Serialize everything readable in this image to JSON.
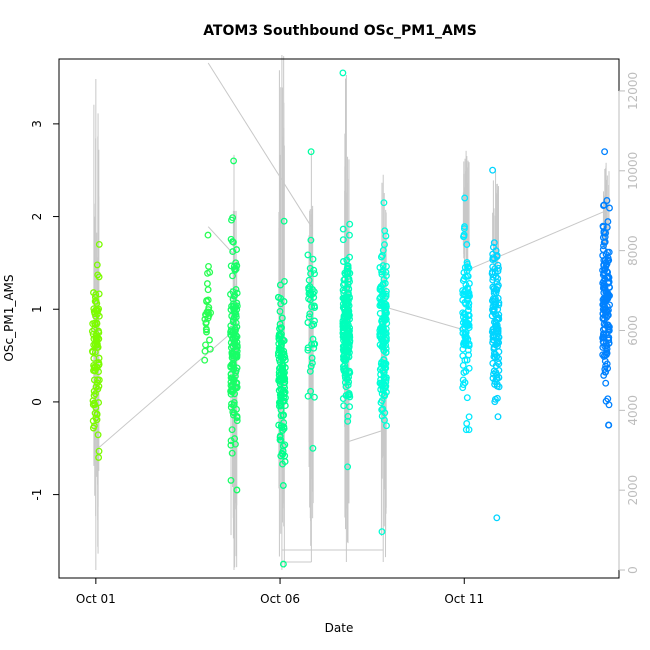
{
  "chart_data": {
    "type": "scatter",
    "title": "ATOM3 Southbound OSc_PM1_AMS",
    "xlabel": "Date",
    "ylabel": "OSc_PM1_AMS",
    "x_tick_labels": [
      {
        "label": "Oct 01",
        "day": 1
      },
      {
        "label": "Oct 06",
        "day": 6
      },
      {
        "label": "Oct 11",
        "day": 11
      }
    ],
    "xlim_days": [
      0.0,
      15.2
    ],
    "ylim": [
      -1.9,
      3.7
    ],
    "y_ticks": [
      -1,
      0,
      1,
      2,
      3
    ],
    "secondary_axis": {
      "side": "right",
      "ticks": [
        0,
        2000,
        4000,
        6000,
        8000,
        10000,
        12000
      ],
      "range": [
        -200,
        12800
      ]
    },
    "grid": false,
    "color_gradient": [
      "#7cfc00",
      "#00ff7f",
      "#00ffff",
      "#0080ff"
    ],
    "series": [
      {
        "day": 1.0,
        "ymin": -0.6,
        "ymax": 1.7,
        "n": 90,
        "center": 0.5,
        "spread": 0.45
      },
      {
        "day": 4.05,
        "ymin": 0.45,
        "ymax": 1.8,
        "n": 30,
        "center": 0.95,
        "spread": 0.3
      },
      {
        "day": 4.75,
        "ymin": -0.95,
        "ymax": 2.6,
        "n": 150,
        "center": 0.6,
        "spread": 0.5
      },
      {
        "day": 6.05,
        "ymin": -1.75,
        "ymax": 1.95,
        "n": 130,
        "center": 0.25,
        "spread": 0.45
      },
      {
        "day": 6.85,
        "ymin": -0.5,
        "ymax": 2.7,
        "n": 45,
        "center": 0.8,
        "spread": 0.5
      },
      {
        "day": 7.8,
        "ymin": -0.7,
        "ymax": 3.55,
        "n": 200,
        "center": 0.8,
        "spread": 0.4
      },
      {
        "day": 8.8,
        "ymin": -1.4,
        "ymax": 2.15,
        "n": 150,
        "center": 0.7,
        "spread": 0.45
      },
      {
        "day": 11.05,
        "ymin": -0.3,
        "ymax": 2.2,
        "n": 110,
        "center": 0.95,
        "spread": 0.4
      },
      {
        "day": 11.85,
        "ymin": -1.25,
        "ymax": 2.5,
        "n": 130,
        "center": 0.85,
        "spread": 0.45
      },
      {
        "day": 14.85,
        "ymin": -0.25,
        "ymax": 2.7,
        "n": 160,
        "center": 1.1,
        "spread": 0.45
      }
    ],
    "secondary_series": [
      {
        "day": 1.0,
        "min": 0,
        "max": 12300
      },
      {
        "day": 4.75,
        "min": 0,
        "max": 10400
      },
      {
        "day": 6.05,
        "min": 0,
        "max": 12900
      },
      {
        "day": 6.85,
        "min": 200,
        "max": 10500
      },
      {
        "day": 7.8,
        "min": 200,
        "max": 12400
      },
      {
        "day": 8.8,
        "min": 200,
        "max": 9900
      },
      {
        "day": 11.05,
        "min": 7400,
        "max": 10500
      },
      {
        "day": 11.85,
        "min": 7400,
        "max": 10000
      },
      {
        "day": 14.85,
        "min": 8000,
        "max": 10200
      }
    ],
    "connector_lines": [
      [
        [
          1.0,
          3000
        ],
        [
          4.75,
          6000
        ]
      ],
      [
        [
          4.05,
          12700
        ],
        [
          6.85,
          8600
        ]
      ],
      [
        [
          4.05,
          8600
        ],
        [
          4.75,
          7900
        ]
      ],
      [
        [
          6.05,
          200
        ],
        [
          6.85,
          200
        ]
      ],
      [
        [
          6.05,
          500
        ],
        [
          8.8,
          500
        ]
      ],
      [
        [
          7.8,
          3200
        ],
        [
          8.8,
          3500
        ]
      ],
      [
        [
          8.8,
          6600
        ],
        [
          11.05,
          6000
        ]
      ],
      [
        [
          11.05,
          7500
        ],
        [
          14.85,
          9000
        ]
      ]
    ]
  }
}
